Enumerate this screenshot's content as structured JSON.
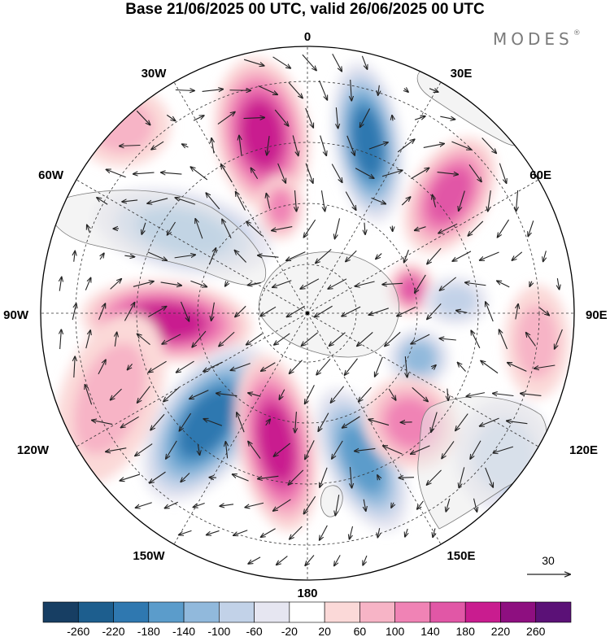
{
  "title": "Base 21/06/2025 00 UTC, valid 26/06/2025 00 UTC",
  "brand": "MODES",
  "brand_mark": "®",
  "map": {
    "projection": "polar-stereographic-south",
    "longitude_labels": {
      "top": "0",
      "top_right": "30E",
      "upper_right": "60E",
      "right": "90E",
      "lower_right": "120E",
      "bottom_right": "150E",
      "bottom": "180",
      "bottom_left": "150W",
      "lower_left": "120W",
      "left": "90W",
      "upper_left": "60W",
      "top_left": "30W"
    },
    "vector_reference_label": "30",
    "colors": {
      "land": "#ebebeb",
      "coast": "#7a7a7a",
      "grid": "#333333"
    }
  },
  "colorbar": {
    "ticks": [
      "-260",
      "-220",
      "-180",
      "-140",
      "-100",
      "-60",
      "-20",
      "20",
      "60",
      "100",
      "140",
      "180",
      "220",
      "260"
    ],
    "colors": [
      "#173e63",
      "#1d5e8e",
      "#2f78b0",
      "#5b9ccb",
      "#91b9dc",
      "#c2d2e8",
      "#e6e6f1",
      "#ffffff",
      "#fbd9d8",
      "#f7b4c6",
      "#f083b5",
      "#e157a6",
      "#c91c8f",
      "#8e0f80",
      "#5b1177"
    ]
  }
}
